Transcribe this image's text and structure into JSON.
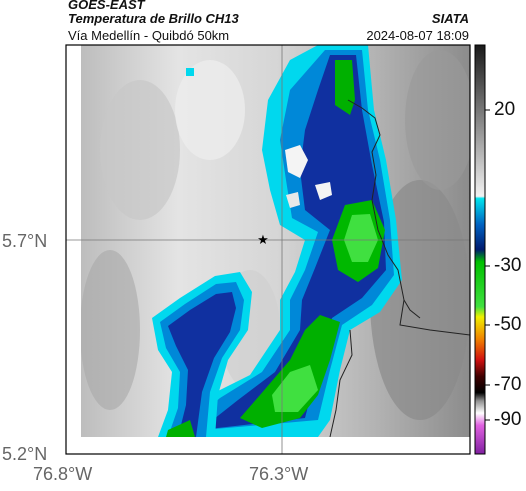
{
  "header": {
    "satellite": "GOES-EAST",
    "product": "Temperatura de Brillo CH13",
    "location": "Vía Medellín - Quibdó 50km",
    "agency": "SIATA",
    "datetime": "2024-08-07 18:09"
  },
  "map": {
    "x_ticks": [
      "76.8°W",
      "76.3°W"
    ],
    "y_ticks": [
      "5.7°N",
      "5.2°N"
    ],
    "marker": "star-marker",
    "grid": "on"
  },
  "colorbar": {
    "ticks": [
      "20",
      "-30",
      "-50",
      "-70",
      "-90"
    ],
    "colors": {
      "warm_gray_top": "#1a1a1a",
      "warm_gray_bottom": "#f2f2f2",
      "cyan": "#00e5ee",
      "blue": "#0040a0",
      "navy": "#001a6e",
      "green": "#00c000",
      "yellow": "#f0f000",
      "red": "#d01010",
      "black": "#000000",
      "magenta": "#c040c0"
    }
  }
}
